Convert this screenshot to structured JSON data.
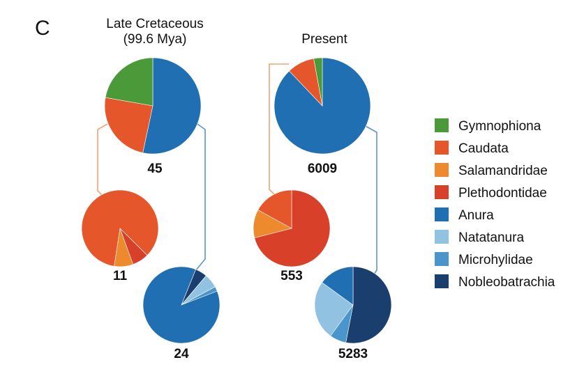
{
  "figure": {
    "panel_letter": "C"
  },
  "columns": [
    {
      "title_line1": "Late Cretaceous",
      "title_line2": "(99.6 Mya)"
    },
    {
      "title_line1": "Present",
      "title_line2": ""
    }
  ],
  "legend": [
    {
      "name": "Gymnophiona",
      "color": "#4a9a3a"
    },
    {
      "name": "Caudata",
      "color": "#e5562a"
    },
    {
      "name": "Salamandridae",
      "color": "#ee8a2e"
    },
    {
      "name": "Plethodontidae",
      "color": "#d8402a"
    },
    {
      "name": "Anura",
      "color": "#1f6fb2"
    },
    {
      "name": "Natatanura",
      "color": "#92c2e2"
    },
    {
      "name": "Microhylidae",
      "color": "#4a95cc"
    },
    {
      "name": "Nobleobatrachia",
      "color": "#1a3f6e"
    }
  ],
  "connector_colors": {
    "caudata": "#f0a27a",
    "anura": "#5b93cf"
  },
  "chart_data": [
    {
      "type": "pie",
      "id": "late-cretaceous-total",
      "count_label": "45",
      "slices": [
        {
          "name": "Anura",
          "value": 24,
          "color": "#1f6fb2"
        },
        {
          "name": "Caudata",
          "value": 11,
          "color": "#e5562a"
        },
        {
          "name": "Gymnophiona",
          "value": 10,
          "color": "#4a9a3a"
        }
      ]
    },
    {
      "type": "pie",
      "id": "late-cretaceous-caudata",
      "count_label": "11",
      "slices": [
        {
          "name": "Salamandridae",
          "value": 0.08,
          "color": "#ee8a2e"
        },
        {
          "name": "Caudata",
          "value": 0.85,
          "color": "#e5562a"
        },
        {
          "name": "Plethodontidae",
          "value": 0.07,
          "color": "#d8402a"
        }
      ]
    },
    {
      "type": "pie",
      "id": "late-cretaceous-anura",
      "count_label": "24",
      "slices": [
        {
          "name": "Natatanura",
          "value": 0.06,
          "color": "#92c2e2"
        },
        {
          "name": "Microhylidae",
          "value": 0.02,
          "color": "#4a95cc"
        },
        {
          "name": "Anura",
          "value": 0.87,
          "color": "#1f6fb2"
        },
        {
          "name": "Nobleobatrachia",
          "value": 0.05,
          "color": "#1a3f6e"
        }
      ]
    },
    {
      "type": "pie",
      "id": "present-total",
      "count_label": "6009",
      "slices": [
        {
          "name": "Anura",
          "value": 5283,
          "color": "#1f6fb2"
        },
        {
          "name": "Caudata",
          "value": 553,
          "color": "#e5562a"
        },
        {
          "name": "Gymnophiona",
          "value": 173,
          "color": "#4a9a3a"
        }
      ]
    },
    {
      "type": "pie",
      "id": "present-caudata",
      "count_label": "553",
      "slices": [
        {
          "name": "Plethodontidae",
          "value": 0.71,
          "color": "#d8402a"
        },
        {
          "name": "Salamandridae",
          "value": 0.12,
          "color": "#ee8a2e"
        },
        {
          "name": "Caudata",
          "value": 0.17,
          "color": "#e5562a"
        }
      ]
    },
    {
      "type": "pie",
      "id": "present-anura",
      "count_label": "5283",
      "slices": [
        {
          "name": "Nobleobatrachia",
          "value": 0.53,
          "color": "#1a3f6e"
        },
        {
          "name": "Microhylidae",
          "value": 0.07,
          "color": "#4a95cc"
        },
        {
          "name": "Natatanura",
          "value": 0.25,
          "color": "#92c2e2"
        },
        {
          "name": "Anura",
          "value": 0.15,
          "color": "#1f6fb2"
        }
      ]
    }
  ]
}
